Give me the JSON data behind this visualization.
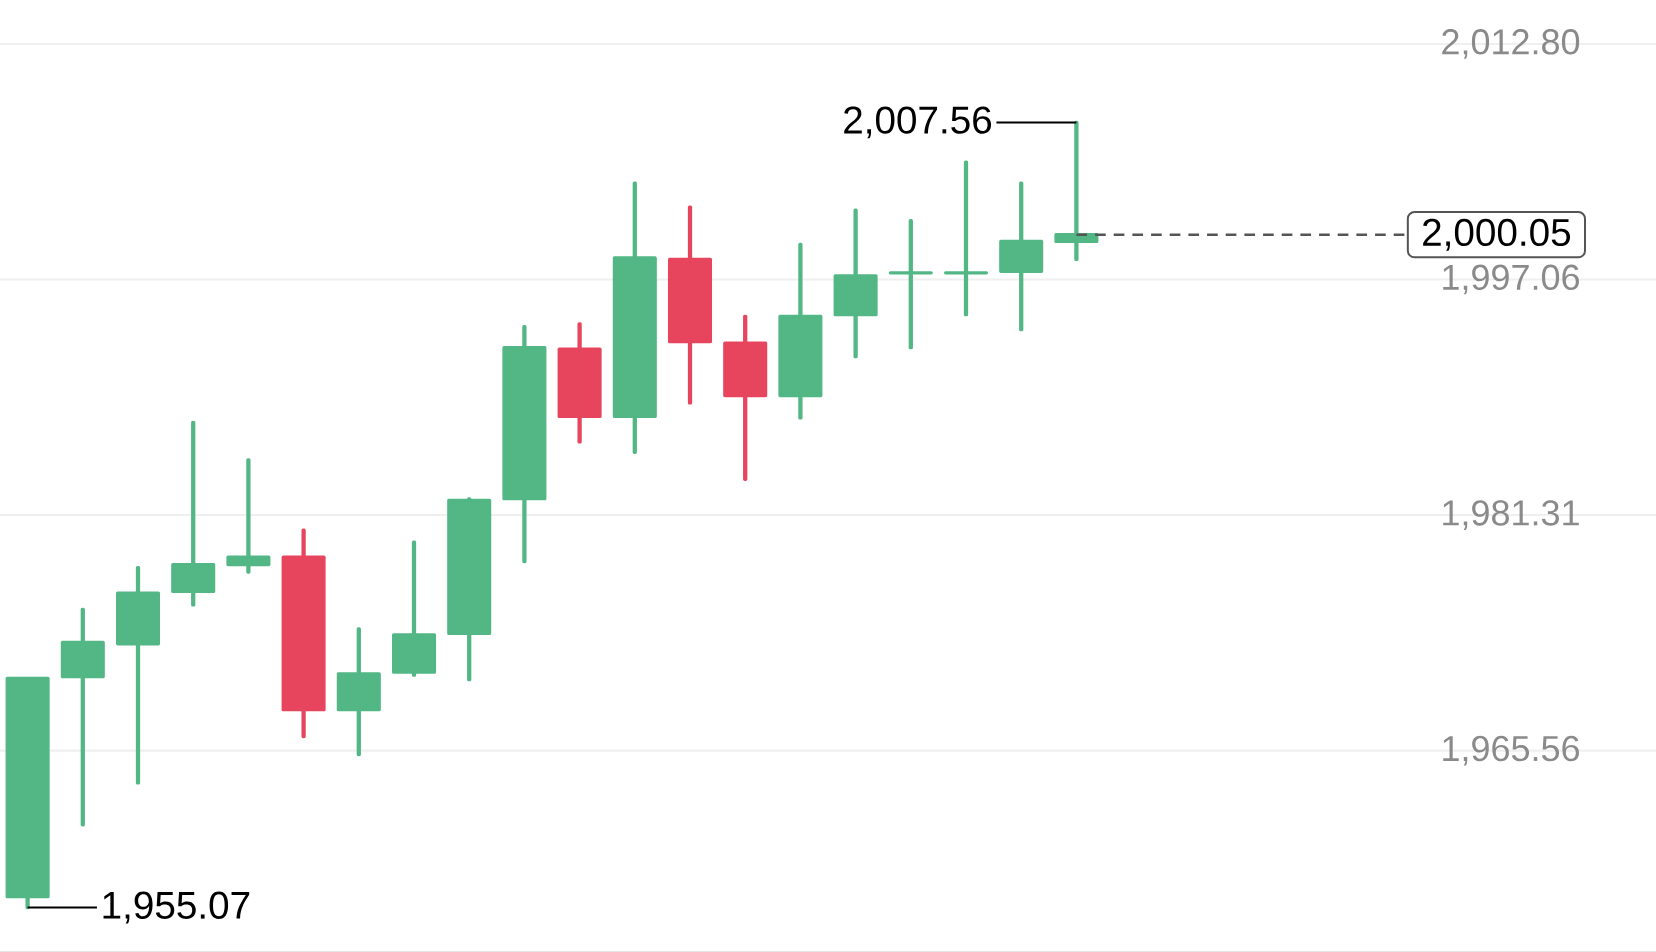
{
  "chart_data": {
    "type": "candlestick",
    "categories": [
      null,
      null,
      null,
      null,
      null,
      null,
      null,
      null,
      null,
      null,
      null,
      null,
      null,
      null,
      null,
      null,
      null,
      null,
      null,
      null,
      null,
      null,
      null,
      null,
      null,
      null,
      null,
      null,
      null,
      null
    ],
    "ohlc": [
      [
        1955.8,
        1970.4,
        1955.07,
        1970.4
      ],
      [
        1970.5,
        1975.0,
        1960.6,
        1972.8
      ],
      [
        1972.7,
        1977.8,
        1963.4,
        1976.1
      ],
      [
        1976.2,
        1987.5,
        1975.3,
        1978.0
      ],
      [
        1978.0,
        1985.0,
        1977.5,
        1978.5
      ],
      [
        1978.5,
        1980.3,
        1966.5,
        1968.3
      ],
      [
        1968.3,
        1973.7,
        1965.3,
        1970.7
      ],
      [
        1970.8,
        1979.5,
        1970.6,
        1973.3
      ],
      [
        1973.4,
        1982.4,
        1970.3,
        1982.3
      ],
      [
        1982.4,
        1993.9,
        1978.2,
        1992.5
      ],
      [
        1992.4,
        1994.1,
        1986.2,
        1987.9
      ],
      [
        1987.9,
        2003.5,
        1985.5,
        1998.5
      ],
      [
        1998.4,
        2001.9,
        1988.8,
        1992.9
      ],
      [
        1992.8,
        1994.6,
        1983.7,
        1989.3
      ],
      [
        1989.3,
        1999.4,
        1987.8,
        1994.6
      ],
      [
        1994.7,
        2001.7,
        1991.9,
        1997.3
      ],
      [
        1997.5,
        2001.0,
        1992.5,
        1997.5
      ],
      [
        1997.5,
        2004.9,
        1994.7,
        1997.5
      ],
      [
        1997.6,
        2003.5,
        1993.7,
        1999.6
      ],
      [
        1999.6,
        2007.56,
        1998.4,
        2000.05
      ],
      null,
      null,
      null,
      null,
      null,
      null,
      null,
      null,
      null,
      null
    ],
    "colors": [
      "#52b784",
      "#52b784",
      "#52b784",
      "#52b784",
      "#52b784",
      "#e6455d",
      "#52b784",
      "#52b784",
      "#52b784",
      "#52b784",
      "#e6455d",
      "#52b784",
      "#e6455d",
      "#e6455d",
      "#52b784",
      "#52b784",
      "#52b784",
      "#52b784",
      "#52b784",
      "#52b784",
      null,
      null,
      null,
      null,
      null,
      null,
      null,
      null,
      null,
      null
    ],
    "ylim": [
      1952.1,
      2012.8
    ],
    "yticks": [
      {
        "value": 2012.8,
        "label": "2,012.80"
      },
      {
        "value": 1997.06,
        "label": "1,997.06"
      },
      {
        "value": 1981.31,
        "label": "1,981.31"
      },
      {
        "value": 1965.56,
        "label": "1,965.56"
      }
    ],
    "grid": "y",
    "ref_lines": [
      {
        "axis": "y",
        "value": 2000.05,
        "label": "2,000.05",
        "line_style": "dashed",
        "color": "#555555"
      }
    ],
    "annotations": [
      "2,007.56",
      "1,955.07"
    ]
  }
}
